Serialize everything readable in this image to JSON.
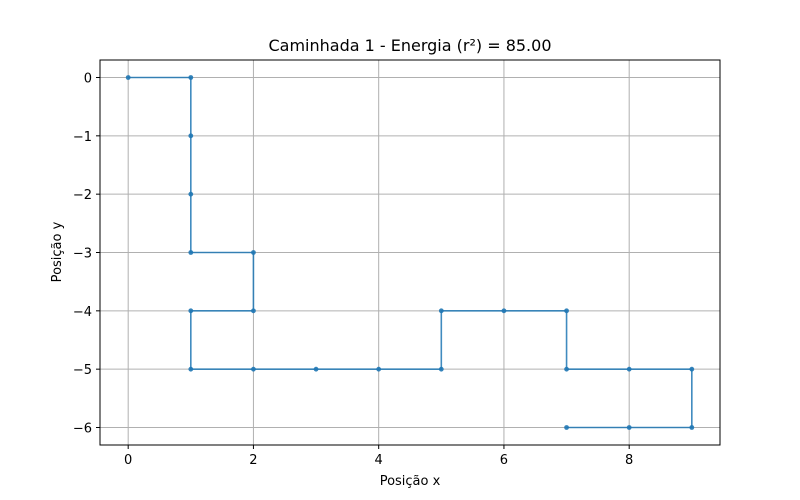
{
  "chart_data": {
    "type": "line",
    "title": "Caminhada 1 - Energia (r²) = 85.00",
    "xlabel": "Posição x",
    "ylabel": "Posição y",
    "xlim": [
      -0.45,
      9.45
    ],
    "ylim": [
      -6.3,
      0.3
    ],
    "xticks": [
      0,
      2,
      4,
      6,
      8
    ],
    "yticks": [
      0,
      -1,
      -2,
      -3,
      -4,
      -5,
      -6
    ],
    "xtick_labels": [
      "0",
      "2",
      "4",
      "6",
      "8"
    ],
    "ytick_labels": [
      "0",
      "−1",
      "−2",
      "−3",
      "−4",
      "−5",
      "−6"
    ],
    "grid": true,
    "series": [
      {
        "color": "#1f77b4",
        "marker": "circle",
        "x": [
          0,
          1,
          1,
          1,
          1,
          2,
          2,
          1,
          1,
          2,
          3,
          4,
          5,
          5,
          6,
          7,
          7,
          8,
          9,
          9,
          8,
          7
        ],
        "y": [
          0,
          0,
          -1,
          -2,
          -3,
          -3,
          -4,
          -4,
          -5,
          -5,
          -5,
          -5,
          -5,
          -4,
          -4,
          -4,
          -5,
          -5,
          -5,
          -6,
          -6,
          -6
        ]
      }
    ]
  }
}
